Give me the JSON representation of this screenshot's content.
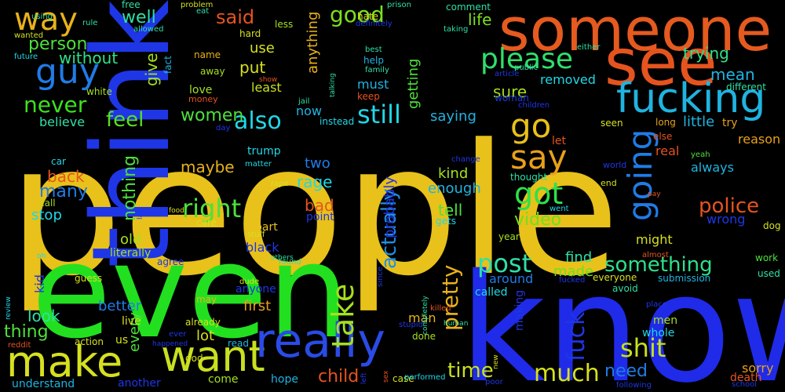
{
  "title": "",
  "words": [
    {
      "text": "people",
      "color": "#e8c11a",
      "orientation": "horizontal"
    },
    {
      "text": "think",
      "color": "#1f36e6",
      "orientation": "vertical"
    },
    {
      "text": "someone",
      "color": "#e55a1f",
      "orientation": "horizontal"
    },
    {
      "text": "know",
      "color": "#1f2be8",
      "orientation": "horizontal"
    },
    {
      "text": "even",
      "color": "#22e01f",
      "orientation": "horizontal"
    },
    {
      "text": "see",
      "color": "#e5541f",
      "orientation": "horizontal"
    },
    {
      "text": "fucking",
      "color": "#1fb4e0",
      "orientation": "horizontal"
    },
    {
      "text": "make",
      "color": "#d6e01f",
      "orientation": "horizontal"
    },
    {
      "text": "want",
      "color": "#c8e01f",
      "orientation": "horizontal"
    },
    {
      "text": "really",
      "color": "#2a4be6",
      "orientation": "horizontal"
    },
    {
      "text": "way",
      "color": "#e8b21a",
      "orientation": "horizontal"
    },
    {
      "text": "guy",
      "color": "#1f7ce6",
      "orientation": "horizontal"
    },
    {
      "text": "please",
      "color": "#2ee06c",
      "orientation": "horizontal"
    },
    {
      "text": "go",
      "color": "#e8c11a",
      "orientation": "horizontal"
    },
    {
      "text": "say",
      "color": "#e8a01a",
      "orientation": "horizontal"
    },
    {
      "text": "going",
      "color": "#1f7ce6",
      "orientation": "vertical"
    },
    {
      "text": "got",
      "color": "#2ee04a",
      "orientation": "horizontal"
    },
    {
      "text": "good",
      "color": "#7ce01f",
      "orientation": "horizontal"
    },
    {
      "text": "said",
      "color": "#e5541f",
      "orientation": "horizontal"
    },
    {
      "text": "still",
      "color": "#1fd8e6",
      "orientation": "horizontal"
    },
    {
      "text": "also",
      "color": "#1fd8e6",
      "orientation": "horizontal"
    },
    {
      "text": "never",
      "color": "#3ee01f",
      "orientation": "horizontal"
    },
    {
      "text": "feel",
      "color": "#58e01f",
      "orientation": "horizontal"
    },
    {
      "text": "women",
      "color": "#4ee03a",
      "orientation": "horizontal"
    },
    {
      "text": "right",
      "color": "#4ee03a",
      "orientation": "horizontal"
    },
    {
      "text": "police",
      "color": "#e5541f",
      "orientation": "horizontal"
    },
    {
      "text": "something",
      "color": "#2ee08a",
      "orientation": "horizontal"
    },
    {
      "text": "post",
      "color": "#2ee0a6",
      "orientation": "horizontal"
    },
    {
      "text": "much",
      "color": "#d6e01f",
      "orientation": "horizontal"
    },
    {
      "text": "shit",
      "color": "#c8e01f",
      "orientation": "horizontal"
    },
    {
      "text": "time",
      "color": "#c8e01f",
      "orientation": "horizontal"
    },
    {
      "text": "need",
      "color": "#1f7ce6",
      "orientation": "horizontal"
    },
    {
      "text": "child",
      "color": "#e5541f",
      "orientation": "horizontal"
    },
    {
      "text": "take",
      "color": "#a6e01f",
      "orientation": "vertical"
    },
    {
      "text": "pretty",
      "color": "#e8b21a",
      "orientation": "vertical"
    },
    {
      "text": "actually",
      "color": "#1f8fe6",
      "orientation": "vertical"
    },
    {
      "text": "fuck",
      "color": "#1f36e6",
      "orientation": "vertical"
    },
    {
      "text": "video",
      "color": "#6ee01f",
      "orientation": "horizontal"
    },
    {
      "text": "tell",
      "color": "#4ee03a",
      "orientation": "horizontal"
    },
    {
      "text": "enough",
      "color": "#1fb4e0",
      "orientation": "horizontal"
    },
    {
      "text": "kind",
      "color": "#a6e01f",
      "orientation": "horizontal"
    },
    {
      "text": "rage",
      "color": "#1fd8e6",
      "orientation": "horizontal"
    },
    {
      "text": "bad",
      "color": "#e5541f",
      "orientation": "horizontal"
    },
    {
      "text": "two",
      "color": "#1f7ce6",
      "orientation": "horizontal"
    },
    {
      "text": "maybe",
      "color": "#e8b21a",
      "orientation": "horizontal"
    },
    {
      "text": "back",
      "color": "#e5541f",
      "orientation": "horizontal"
    },
    {
      "text": "many",
      "color": "#1f7ce6",
      "orientation": "horizontal"
    },
    {
      "text": "nothing",
      "color": "#4ee03a",
      "orientation": "vertical"
    },
    {
      "text": "stop",
      "color": "#1fd8e6",
      "orientation": "horizontal"
    },
    {
      "text": "old",
      "color": "#a6e01f",
      "orientation": "horizontal"
    },
    {
      "text": "well",
      "color": "#2ee0a6",
      "orientation": "horizontal"
    },
    {
      "text": "person",
      "color": "#4ee03a",
      "orientation": "horizontal"
    },
    {
      "text": "without",
      "color": "#2ee08a",
      "orientation": "horizontal"
    },
    {
      "text": "believe",
      "color": "#2ee0a6",
      "orientation": "horizontal"
    },
    {
      "text": "trying",
      "color": "#2ee08a",
      "orientation": "horizontal"
    },
    {
      "text": "mean",
      "color": "#1fb4e0",
      "orientation": "horizontal"
    },
    {
      "text": "life",
      "color": "#7ce01f",
      "orientation": "horizontal"
    },
    {
      "text": "anything",
      "color": "#e8b21a",
      "orientation": "vertical"
    },
    {
      "text": "getting",
      "color": "#4ee03a",
      "orientation": "vertical"
    },
    {
      "text": "sure",
      "color": "#a6e01f",
      "orientation": "horizontal"
    },
    {
      "text": "saying",
      "color": "#1fb4e0",
      "orientation": "horizontal"
    },
    {
      "text": "removed",
      "color": "#1fd8e6",
      "orientation": "horizontal"
    },
    {
      "text": "little",
      "color": "#1fb4e0",
      "orientation": "horizontal"
    },
    {
      "text": "always",
      "color": "#1fb4e0",
      "orientation": "horizontal"
    },
    {
      "text": "wrong",
      "color": "#1f36e6",
      "orientation": "horizontal"
    },
    {
      "text": "give",
      "color": "#a6e01f",
      "orientation": "vertical"
    },
    {
      "text": "put",
      "color": "#d6e01f",
      "orientation": "horizontal"
    },
    {
      "text": "use",
      "color": "#d6e01f",
      "orientation": "horizontal"
    },
    {
      "text": "love",
      "color": "#a6e01f",
      "orientation": "horizontal"
    },
    {
      "text": "must",
      "color": "#1fb4e0",
      "orientation": "horizontal"
    },
    {
      "text": "now",
      "color": "#1fb4e0",
      "orientation": "horizontal"
    },
    {
      "text": "least",
      "color": "#c8e01f",
      "orientation": "horizontal"
    },
    {
      "text": "probably",
      "color": "#1f36e6",
      "orientation": "vertical"
    },
    {
      "text": "part",
      "color": "#e8c11a",
      "orientation": "horizontal"
    },
    {
      "text": "black",
      "color": "#1f36e6",
      "orientation": "horizontal"
    },
    {
      "text": "point",
      "color": "#1f36e6",
      "orientation": "horizontal"
    },
    {
      "text": "find",
      "color": "#2ee0a6",
      "orientation": "horizontal"
    },
    {
      "text": "made",
      "color": "#6ee01f",
      "orientation": "horizontal"
    },
    {
      "text": "around",
      "color": "#1f7ce6",
      "orientation": "horizontal"
    },
    {
      "text": "man",
      "color": "#e8b21a",
      "orientation": "horizontal"
    },
    {
      "text": "first",
      "color": "#e8a01a",
      "orientation": "horizontal"
    },
    {
      "text": "better",
      "color": "#1f7ce6",
      "orientation": "horizontal"
    },
    {
      "text": "look",
      "color": "#2ee0a6",
      "orientation": "horizontal"
    },
    {
      "text": "thing",
      "color": "#4ee03a",
      "orientation": "horizontal"
    },
    {
      "text": "lot",
      "color": "#d6e01f",
      "orientation": "horizontal"
    },
    {
      "text": "every",
      "color": "#4ee03a",
      "orientation": "vertical"
    },
    {
      "text": "kid",
      "color": "#1f36e6",
      "orientation": "vertical"
    },
    {
      "text": "understand",
      "color": "#1fb4e0",
      "orientation": "horizontal"
    },
    {
      "text": "another",
      "color": "#1f36e6",
      "orientation": "horizontal"
    },
    {
      "text": "hope",
      "color": "#1fb4e0",
      "orientation": "horizontal"
    },
    {
      "text": "come",
      "color": "#a6e01f",
      "orientation": "horizontal"
    },
    {
      "text": "sorry",
      "color": "#e8a01a",
      "orientation": "horizontal"
    },
    {
      "text": "men",
      "color": "#a6e01f",
      "orientation": "horizontal"
    },
    {
      "text": "might",
      "color": "#d6e01f",
      "orientation": "horizontal"
    },
    {
      "text": "used",
      "color": "#2ee0a6",
      "orientation": "horizontal"
    },
    {
      "text": "work",
      "color": "#4ee03a",
      "orientation": "horizontal"
    },
    {
      "text": "death",
      "color": "#e5541f",
      "orientation": "horizontal"
    },
    {
      "text": "whole",
      "color": "#1fd8e6",
      "orientation": "horizontal"
    },
    {
      "text": "making",
      "color": "#1f36e6",
      "orientation": "vertical"
    },
    {
      "text": "submission",
      "color": "#1fb4e0",
      "orientation": "horizontal"
    },
    {
      "text": "everyone",
      "color": "#d6e01f",
      "orientation": "horizontal"
    },
    {
      "text": "called",
      "color": "#1fd8e6",
      "orientation": "horizontal"
    },
    {
      "text": "year",
      "color": "#a6e01f",
      "orientation": "horizontal"
    },
    {
      "text": "gets",
      "color": "#1fd8e6",
      "orientation": "horizontal"
    },
    {
      "text": "anyone",
      "color": "#1f36e6",
      "orientation": "horizontal"
    },
    {
      "text": "trump",
      "color": "#1fd8e6",
      "orientation": "horizontal"
    },
    {
      "text": "instead",
      "color": "#1fd8e6",
      "orientation": "horizontal"
    },
    {
      "text": "name",
      "color": "#e8b21a",
      "orientation": "horizontal"
    },
    {
      "text": "away",
      "color": "#a6e01f",
      "orientation": "horizontal"
    },
    {
      "text": "money",
      "color": "#e5541f",
      "orientation": "horizontal"
    },
    {
      "text": "hard",
      "color": "#d6e01f",
      "orientation": "horizontal"
    },
    {
      "text": "less",
      "color": "#a6e01f",
      "orientation": "horizontal"
    },
    {
      "text": "help",
      "color": "#1fb4e0",
      "orientation": "horizontal"
    },
    {
      "text": "keep",
      "color": "#e5541f",
      "orientation": "horizontal"
    },
    {
      "text": "hate",
      "color": "#d6e01f",
      "orientation": "horizontal"
    },
    {
      "text": "comment",
      "color": "#2ee0a6",
      "orientation": "horizontal"
    },
    {
      "text": "free",
      "color": "#2ee0a6",
      "orientation": "horizontal"
    },
    {
      "text": "fact",
      "color": "#1fb4e0",
      "orientation": "vertical"
    },
    {
      "text": "white",
      "color": "#a6e01f",
      "orientation": "horizontal"
    },
    {
      "text": "woman",
      "color": "#1f36e6",
      "orientation": "horizontal"
    },
    {
      "text": "real",
      "color": "#e5541f",
      "orientation": "horizontal"
    },
    {
      "text": "try",
      "color": "#e8a01a",
      "orientation": "horizontal"
    },
    {
      "text": "reason",
      "color": "#e8a01a",
      "orientation": "horizontal"
    },
    {
      "text": "long",
      "color": "#e8a01a",
      "orientation": "horizontal"
    },
    {
      "text": "else",
      "color": "#e5541f",
      "orientation": "horizontal"
    },
    {
      "text": "let",
      "color": "#e5541f",
      "orientation": "horizontal"
    },
    {
      "text": "thought",
      "color": "#2ee0a6",
      "orientation": "horizontal"
    },
    {
      "text": "different",
      "color": "#2ee0a6",
      "orientation": "horizontal"
    },
    {
      "text": "children",
      "color": "#1f36e6",
      "orientation": "horizontal"
    },
    {
      "text": "article",
      "color": "#1f36e6",
      "orientation": "horizontal"
    },
    {
      "text": "seen",
      "color": "#d6e01f",
      "orientation": "horizontal"
    },
    {
      "text": "yeah",
      "color": "#4ee03a",
      "orientation": "horizontal"
    },
    {
      "text": "world",
      "color": "#1f36e6",
      "orientation": "horizontal"
    },
    {
      "text": "end",
      "color": "#d6e01f",
      "orientation": "horizontal"
    },
    {
      "text": "went",
      "color": "#1fd8e6",
      "orientation": "horizontal"
    },
    {
      "text": "dog",
      "color": "#d6e01f",
      "orientation": "horizontal"
    },
    {
      "text": "car",
      "color": "#1fd8e6",
      "orientation": "horizontal"
    },
    {
      "text": "call",
      "color": "#a6e01f",
      "orientation": "horizontal"
    },
    {
      "text": "care",
      "color": "#d6e01f",
      "orientation": "horizontal"
    },
    {
      "text": "literally",
      "color": "#a6e01f",
      "orientation": "horizontal"
    },
    {
      "text": "live",
      "color": "#d6e01f",
      "orientation": "horizontal"
    },
    {
      "text": "action",
      "color": "#d6e01f",
      "orientation": "horizontal"
    },
    {
      "text": "us",
      "color": "#d6e01f",
      "orientation": "horizontal"
    },
    {
      "text": "read",
      "color": "#1fb4e0",
      "orientation": "horizontal"
    },
    {
      "text": "god",
      "color": "#d6e01f",
      "orientation": "horizontal"
    },
    {
      "text": "guess",
      "color": "#d6e01f",
      "orientation": "horizontal"
    },
    {
      "text": "agree",
      "color": "#1f36e6",
      "orientation": "horizontal"
    },
    {
      "text": "may",
      "color": "#e8b21a",
      "orientation": "horizontal"
    },
    {
      "text": "already",
      "color": "#d6e01f",
      "orientation": "horizontal"
    },
    {
      "text": "ever",
      "color": "#1f36e6",
      "orientation": "horizontal"
    },
    {
      "text": "done",
      "color": "#a6e01f",
      "orientation": "horizontal"
    },
    {
      "text": "case",
      "color": "#d6e01f",
      "orientation": "horizontal"
    },
    {
      "text": "avoid",
      "color": "#2ee0a6",
      "orientation": "horizontal"
    },
    {
      "text": "since",
      "color": "#1f36e6",
      "orientation": "vertical"
    },
    {
      "text": "school",
      "color": "#1f36e6",
      "orientation": "horizontal"
    },
    {
      "text": "poor",
      "color": "#1f36e6",
      "orientation": "horizontal"
    },
    {
      "text": "following",
      "color": "#1f36e6",
      "orientation": "horizontal"
    },
    {
      "text": "place",
      "color": "#1f36e6",
      "orientation": "horizontal"
    },
    {
      "text": "almost",
      "color": "#e5541f",
      "orientation": "horizontal"
    },
    {
      "text": "stupid",
      "color": "#1f36e6",
      "orientation": "horizontal"
    },
    {
      "text": "killed",
      "color": "#e5541f",
      "orientation": "horizontal"
    },
    {
      "text": "performed",
      "color": "#1fd8e6",
      "orientation": "horizontal"
    },
    {
      "text": "fucked",
      "color": "#1f36e6",
      "orientation": "horizontal"
    },
    {
      "text": "dude",
      "color": "#d6e01f",
      "orientation": "horizontal"
    },
    {
      "text": "found",
      "color": "#2ee0a6",
      "orientation": "horizontal"
    },
    {
      "text": "others",
      "color": "#2ee0a6",
      "orientation": "horizontal"
    },
    {
      "text": "stuff",
      "color": "#d6e01f",
      "orientation": "horizontal"
    },
    {
      "text": "rape",
      "color": "#d6e01f",
      "orientation": "horizontal"
    },
    {
      "text": "matter",
      "color": "#1fd8e6",
      "orientation": "horizontal"
    },
    {
      "text": "day",
      "color": "#1f36e6",
      "orientation": "horizontal"
    },
    {
      "text": "food",
      "color": "#d6e01f",
      "orientation": "horizontal"
    },
    {
      "text": "law",
      "color": "#1f36e6",
      "orientation": "vertical"
    },
    {
      "text": "pay",
      "color": "#e5541f",
      "orientation": "horizontal"
    },
    {
      "text": "human",
      "color": "#2ee0a6",
      "orientation": "horizontal"
    },
    {
      "text": "change",
      "color": "#1f36e6",
      "orientation": "horizontal"
    },
    {
      "text": "jail",
      "color": "#2ee0a6",
      "orientation": "horizontal"
    },
    {
      "text": "show",
      "color": "#e5541f",
      "orientation": "horizontal"
    },
    {
      "text": "best",
      "color": "#2ee0a6",
      "orientation": "horizontal"
    },
    {
      "text": "family",
      "color": "#2ee0a6",
      "orientation": "horizontal"
    },
    {
      "text": "public",
      "color": "#2ee0a6",
      "orientation": "horizontal"
    },
    {
      "text": "either",
      "color": "#2ee0a6",
      "orientation": "horizontal"
    },
    {
      "text": "taking",
      "color": "#2ee0a6",
      "orientation": "horizontal"
    },
    {
      "text": "definitely",
      "color": "#1f36e6",
      "orientation": "horizontal"
    },
    {
      "text": "prison",
      "color": "#2ee0a6",
      "orientation": "horizontal"
    },
    {
      "text": "talking",
      "color": "#2ee0a6",
      "orientation": "vertical"
    },
    {
      "text": "problem",
      "color": "#d6e01f",
      "orientation": "horizontal"
    },
    {
      "text": "eat",
      "color": "#2ee0a6",
      "orientation": "horizontal"
    },
    {
      "text": "allowed",
      "color": "#2ee0a6",
      "orientation": "horizontal"
    },
    {
      "text": "using",
      "color": "#2ee0a6",
      "orientation": "horizontal"
    },
    {
      "text": "rule",
      "color": "#2ee0a6",
      "orientation": "horizontal"
    },
    {
      "text": "wanted",
      "color": "#d6e01f",
      "orientation": "horizontal"
    },
    {
      "text": "future",
      "color": "#1fd8e6",
      "orientation": "horizontal"
    },
    {
      "text": "oh",
      "color": "#1fd8e6",
      "orientation": "horizontal"
    },
    {
      "text": "review",
      "color": "#1fd8e6",
      "orientation": "vertical"
    },
    {
      "text": "reddit",
      "color": "#e5541f",
      "orientation": "horizontal"
    },
    {
      "text": "happened",
      "color": "#1f36e6",
      "orientation": "horizontal"
    },
    {
      "text": "sex",
      "color": "#e5541f",
      "orientation": "vertical"
    },
    {
      "text": "left",
      "color": "#1f36e6",
      "orientation": "vertical"
    },
    {
      "text": "new",
      "color": "#d6e01f",
      "orientation": "vertical"
    },
    {
      "text": "completely",
      "color": "#2ee0a6",
      "orientation": "vertical"
    }
  ]
}
